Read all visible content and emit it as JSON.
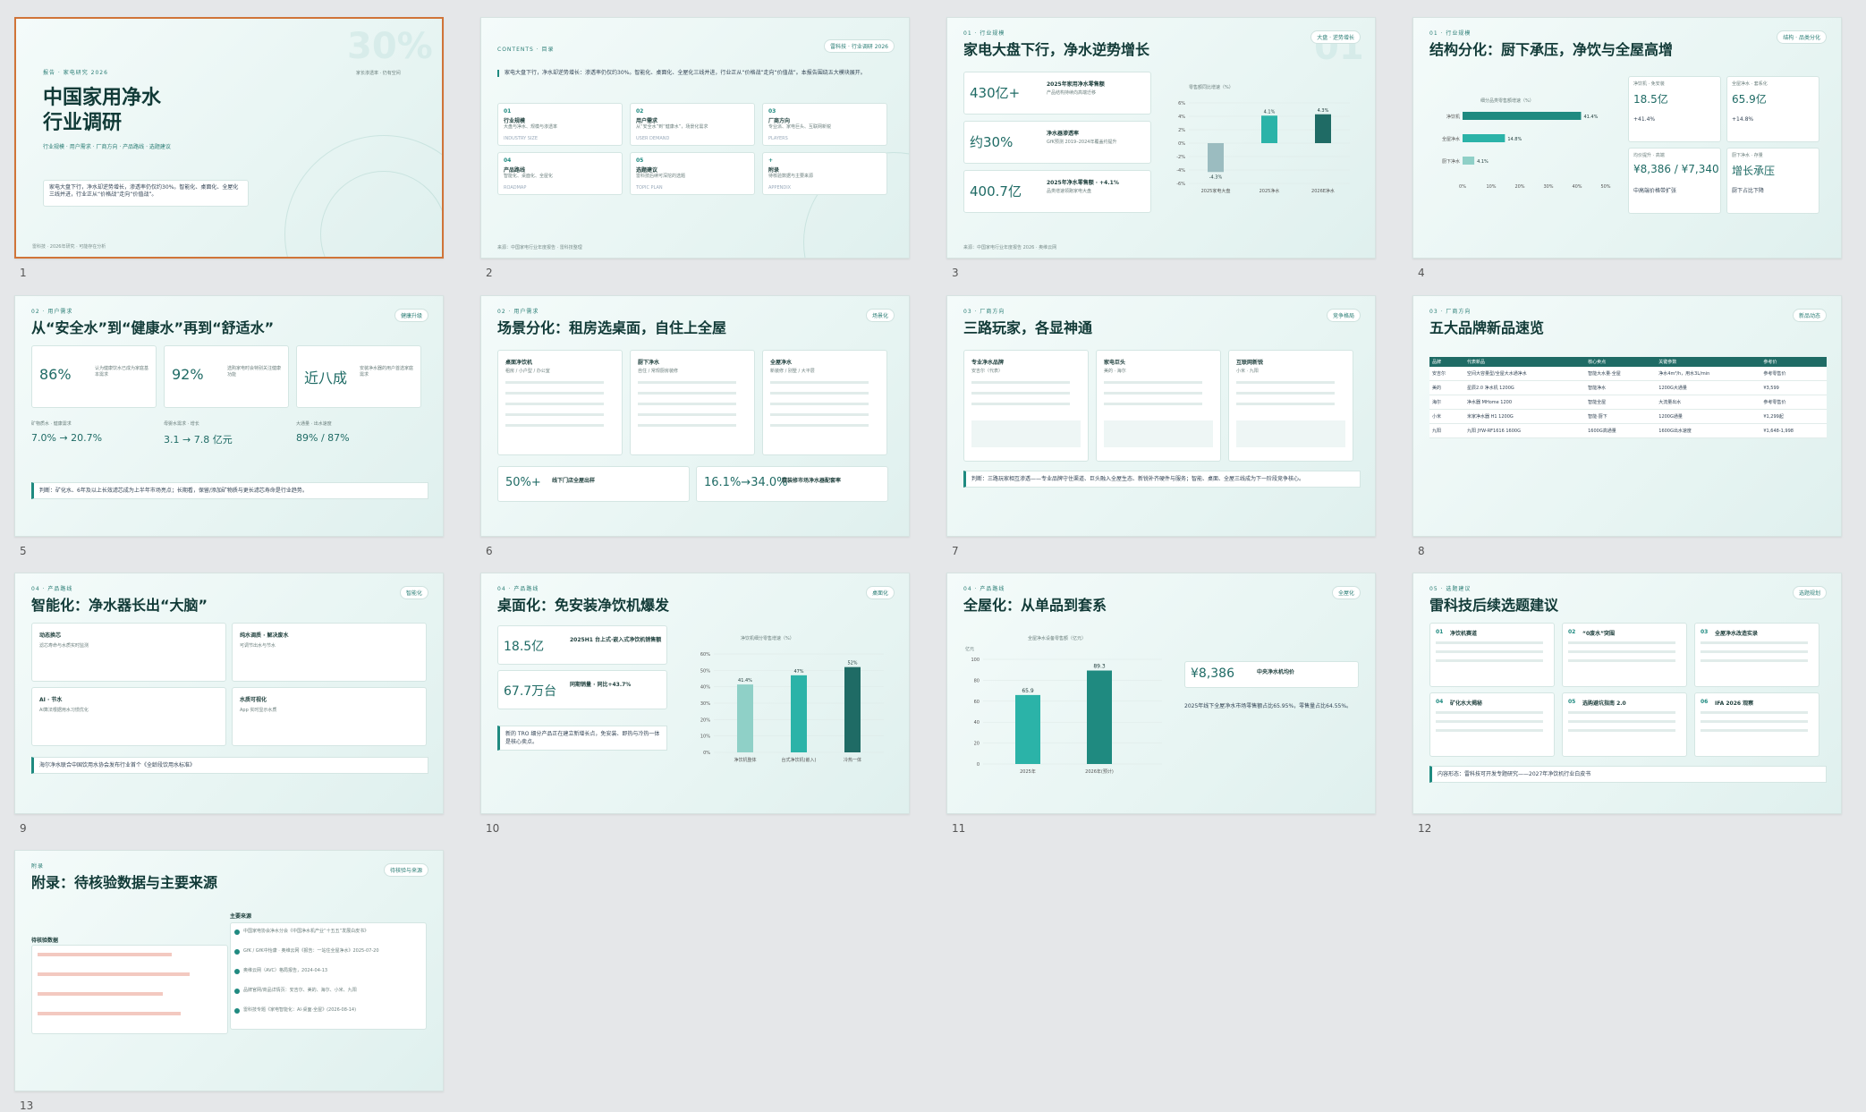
{
  "slides": [
    {
      "num": "1",
      "kicker": "报告 · 家电研究 2026",
      "title_line1": "中国家用净水",
      "title_line2": "行业调研",
      "subtitle": "行业规模 · 用户需求 · 厂商方向 · 产品路线 · 选题建议",
      "summary": "家电大盘下行，净水却逆势增长，渗透率仍仅约30%。智能化、桌面化、全屋化三线并进，行业正从“价格战”走向“价值战”。",
      "watermark": "30%",
      "watermark_sub": "家长渗透率 · 仍有空间",
      "foot": "雷科技 · 2026年研究 · 可能存在分析"
    },
    {
      "num": "2",
      "kicker": "CONTENTS · 目录",
      "tag": "雷科技 · 行业调研 2026",
      "lead": "家电大盘下行，净水却逆势增长：渗透率仍仅约30%。智能化、桌面化、全屋化三线并进，行业正从“价格战”走向“价值战”。本报告围绕五大模块展开。",
      "items": [
        {
          "n": "01",
          "t": "行业规模",
          "d": "大盘与净水、规模与渗透率",
          "en": "INDUSTRY SIZE"
        },
        {
          "n": "02",
          "t": "用户需求",
          "d": "从“安全水”到“健康水”，场景化需求",
          "en": "USER DEMAND"
        },
        {
          "n": "03",
          "t": "厂商方向",
          "d": "专业派、家电巨头、互联网新锐",
          "en": "PLAYERS"
        },
        {
          "n": "04",
          "t": "产品路线",
          "d": "智能化、桌面化、全屋化",
          "en": "ROADMAP"
        },
        {
          "n": "05",
          "t": "选题建议",
          "d": "雷科技后续可深挖的选题",
          "en": "TOPIC PLAN"
        },
        {
          "n": "+",
          "t": "附录",
          "d": "待核验数据与主要来源",
          "en": "APPENDIX"
        }
      ]
    },
    {
      "num": "3",
      "kicker": "01 · 行业规模",
      "title": "家电大盘下行，净水逆势增长",
      "tag": "大盘 · 逆势增长",
      "stats": [
        {
          "v": "430亿+",
          "h": "2025年家用净水零售额",
          "d": "产品结构持续向高端迁移"
        },
        {
          "v": "约30%",
          "h": "净水器渗透率",
          "d": "GfK预测 2019–2024年覆盖约提升"
        },
        {
          "v": "400.7亿",
          "h": "2025年净水零售额 · +4.1%",
          "d": "品类增速领跑家电大盘"
        }
      ],
      "chart_title": "零售额同比增速（%）",
      "foot": "来源：中国家电行业年度报告 2026 · 奥维云网"
    },
    {
      "num": "4",
      "kicker": "01 · 行业规模",
      "title": "结构分化：厨下承压，净饮与全屋高增",
      "tag": "结构 · 品类分化",
      "chart_title": "细分品类零售额增速（%）",
      "cards": [
        {
          "h": "净饮机 · 免安装",
          "v": "18.5亿",
          "d": "+41.4%"
        },
        {
          "h": "全屋净水 · 套系化",
          "v": "65.9亿",
          "d": "+14.8%"
        },
        {
          "h": "均价提升 · 高端",
          "v": "¥8,386 / ¥7,340",
          "d": "中高端价格带扩张"
        },
        {
          "h": "厨下净水 · 存量",
          "v": "增长承压",
          "d": "厨下占比下降"
        }
      ]
    },
    {
      "num": "5",
      "kicker": "02 · 用户需求",
      "title": "从“安全水”到“健康水”再到“舒适水”",
      "tag": "健康升级",
      "stats": [
        {
          "v": "86%",
          "d": "认为健康饮水已成为家庭基本需求"
        },
        {
          "v": "92%",
          "d": "选购家电时会特别关注健康功能"
        },
        {
          "v": "近八成",
          "d": "安装净水器的用户首选家庭需求"
        }
      ],
      "sub": [
        {
          "h": "矿物质水 · 健康需求",
          "v": "7.0% → 20.7%"
        },
        {
          "h": "母婴水需求 · 增长",
          "v": "3.1 → 7.8 亿元"
        },
        {
          "h": "大通量 · 出水速度",
          "v": "89% / 87%"
        }
      ],
      "judge": "判断：矿化水、6年及以上长效滤芯成为上半年市场亮点；长期看，保留/添加矿物质与更长滤芯寿命是行业趋势。"
    },
    {
      "num": "6",
      "kicker": "02 · 用户需求",
      "title": "场景分化：租房选桌面，自住上全屋",
      "tag": "场景化",
      "cols": [
        {
          "h": "桌面净饮机",
          "s": "租房 / 小户型 / 办公室"
        },
        {
          "h": "厨下净水",
          "s": "自住 / 常规厨房装修"
        },
        {
          "h": "全屋净水",
          "s": "新装修 / 别墅 / 大平层"
        }
      ],
      "stats": [
        {
          "v": "50%+",
          "h": "线下门店全屋出样"
        },
        {
          "v": "16.1%→34.0%",
          "h": "精装修市场净水器配套率"
        }
      ]
    },
    {
      "num": "7",
      "kicker": "03 · 厂商方向",
      "title": "三路玩家，各显神通",
      "tag": "竞争格局",
      "cols": [
        {
          "h": "专业净水品牌",
          "s": "安吉尔（代表）"
        },
        {
          "h": "家电巨头",
          "s": "美的 · 海尔"
        },
        {
          "h": "互联网新锐",
          "s": "小米 · 九阳"
        }
      ],
      "judge": "判断：三路玩家相互渗透——专业品牌守住渠道、巨头融入全屋生态、新锐补齐硬件与服务；智能、桌面、全屋三线成为下一阶段竞争核心。"
    },
    {
      "num": "8",
      "kicker": "03 · 厂商方向",
      "title": "五大品牌新品速览",
      "tag": "新品动态",
      "headers": [
        "品牌",
        "代表新品",
        "核心卖点",
        "关键参数",
        "参考价"
      ],
      "rows": [
        {
          "b": "安吉尔",
          "m": "空间大容量型/全屋大水通净水",
          "k": "智能大水量·全屋",
          "p": "净水4m³/h，用水3L/min",
          "price": "参考零售价"
        },
        {
          "b": "美的",
          "m": "星辰2.0 净水机 1200G",
          "k": "智能净水",
          "p": "1200G大通量",
          "price": "¥3,599"
        },
        {
          "b": "海尔",
          "m": "净水器 MHome 1200",
          "k": "智能全屋",
          "p": "大流量出水",
          "price": "参考零售价"
        },
        {
          "b": "小米",
          "m": "米家净水器 H1 1200G",
          "k": "智能·厨下",
          "p": "1200G通量",
          "price": "¥1,299起"
        },
        {
          "b": "九阳",
          "m": "九阳 JYW-RF1616 1600G",
          "k": "1600G高通量",
          "p": "1600G出水速度",
          "price": "¥1,648-1,998"
        }
      ]
    },
    {
      "num": "9",
      "kicker": "04 · 产品路线",
      "title": "智能化：净水器长出“大脑”",
      "tag": "智能化",
      "cards": [
        {
          "h": "动态换芯",
          "d": "滤芯寿命与水质实时监测"
        },
        {
          "h": "纯水调质 · 解决废水",
          "d": "可调节出水与节水"
        },
        {
          "h": "AI · 节水",
          "d": "AI算法根据用水习惯优化"
        },
        {
          "h": "水质可视化",
          "d": "App 实时显示水质"
        }
      ],
      "note": "海尔净水联合中国饮用水协会发布行业首个《全龄段饮用水标准》"
    },
    {
      "num": "10",
      "kicker": "04 · 产品路线",
      "title": "桌面化：免安装净饮机爆发",
      "tag": "桌面化",
      "stats": [
        {
          "v": "18.5亿",
          "h": "2025H1 台上式·嵌入式净饮机销售额"
        },
        {
          "v": "67.7万台",
          "h": "同期销量 · 同比+43.7%"
        }
      ],
      "chart_title": "净饮机细分零售增速（%）",
      "judge": "新的 TRO 细分产品正在建立新增长点，免安装、即热与冷热一体是核心卖点。"
    },
    {
      "num": "11",
      "kicker": "04 · 产品路线",
      "title": "全屋化：从单品到套系",
      "tag": "全屋化",
      "chart_title": "全屋净水设备零售额（亿元）",
      "unit": "亿元",
      "price": "¥8,386",
      "price_h": "中央净水机均价",
      "note": "2025年线下全屋净水市场零售额占比65.95%，零售量占比64.55%。"
    },
    {
      "num": "12",
      "kicker": "05 · 选题建议",
      "title": "雷科技后续选题建议",
      "tag": "选题规划",
      "cards": [
        {
          "n": "01",
          "h": "净饮机赛道"
        },
        {
          "n": "02",
          "h": "“0废水”突围"
        },
        {
          "n": "03",
          "h": "全屋净水改造实录"
        },
        {
          "n": "04",
          "h": "矿化水大揭秘"
        },
        {
          "n": "05",
          "h": "选购避坑指南 2.0"
        },
        {
          "n": "06",
          "h": "IFA 2026 观察"
        }
      ],
      "note": "内容形态：雷科技可开发专题研究——2027年净饮机行业白皮书"
    },
    {
      "num": "13",
      "kicker": "附录",
      "title": "附录：待核验数据与主要来源",
      "tag": "待核验与来源",
      "left_h": "待核验数据",
      "src_h": "主要来源",
      "items": [
        "中国家电协会净水分会《中国净水机产业“十五五”发展白皮书》",
        "GfK / GfK中怡康 · 奥维云网《报告：一站住全屋净水》2025-07-20",
        "奥维云网（AVC）格局报告，2024-04-13",
        "品牌官网/商品详情页：安吉尔、美的、海尔、小米、九阳",
        "雷科技专题《家电智能化：AI·桌面·全屋》(2026-08-14)"
      ]
    }
  ],
  "chart3": {
    "type": "bar",
    "title": "零售额同比增速（%）",
    "categories": [
      "2025家电大盘",
      "2025净水",
      "2026E净水"
    ],
    "values": [
      -4.3,
      4.1,
      4.3
    ],
    "ylim": [
      -6,
      6
    ],
    "yticks": [
      "6%",
      "4%",
      "2%",
      "0%",
      "-2%",
      "-4%",
      "-6%"
    ],
    "labels": [
      "-4.3%",
      "4.1%",
      "4.3%"
    ]
  },
  "chart4": {
    "type": "bar",
    "title": "细分品类零售额增速（%）",
    "categories": [
      "净饮机",
      "全屋净水",
      "厨下净水"
    ],
    "values": [
      41.4,
      14.8,
      4.1
    ],
    "labels": [
      "41.4%",
      "14.8%",
      "4.1%"
    ],
    "xticks": [
      "0%",
      "10%",
      "20%",
      "30%",
      "40%",
      "50%"
    ],
    "xlim": [
      0,
      50
    ]
  },
  "chart10": {
    "type": "bar",
    "title": "净饮机细分零售增速（%）",
    "categories": [
      "净饮机整体",
      "台式净饮机(嵌入)",
      "冷热一体"
    ],
    "values": [
      41.4,
      47,
      52
    ],
    "labels": [
      "41.4%",
      "47%",
      "52%"
    ],
    "ylim": [
      0,
      60
    ],
    "yticks": [
      "60%",
      "50%",
      "40%",
      "30%",
      "20%",
      "10%",
      "0%"
    ]
  },
  "chart11": {
    "type": "bar",
    "title": "全屋净水设备零售额（亿元）",
    "unit": "亿元",
    "categories": [
      "2025年",
      "2026年(预计)"
    ],
    "values": [
      65.9,
      89.3
    ],
    "labels": [
      "65.9",
      "89.3"
    ],
    "ylim": [
      0,
      100
    ],
    "yticks": [
      "100",
      "80",
      "60",
      "40",
      "20",
      "0"
    ]
  },
  "colors": {
    "accent": "#1f8a80",
    "dark": "#1f6b65",
    "light": "#8fd0c7",
    "selected": "#d07438"
  }
}
